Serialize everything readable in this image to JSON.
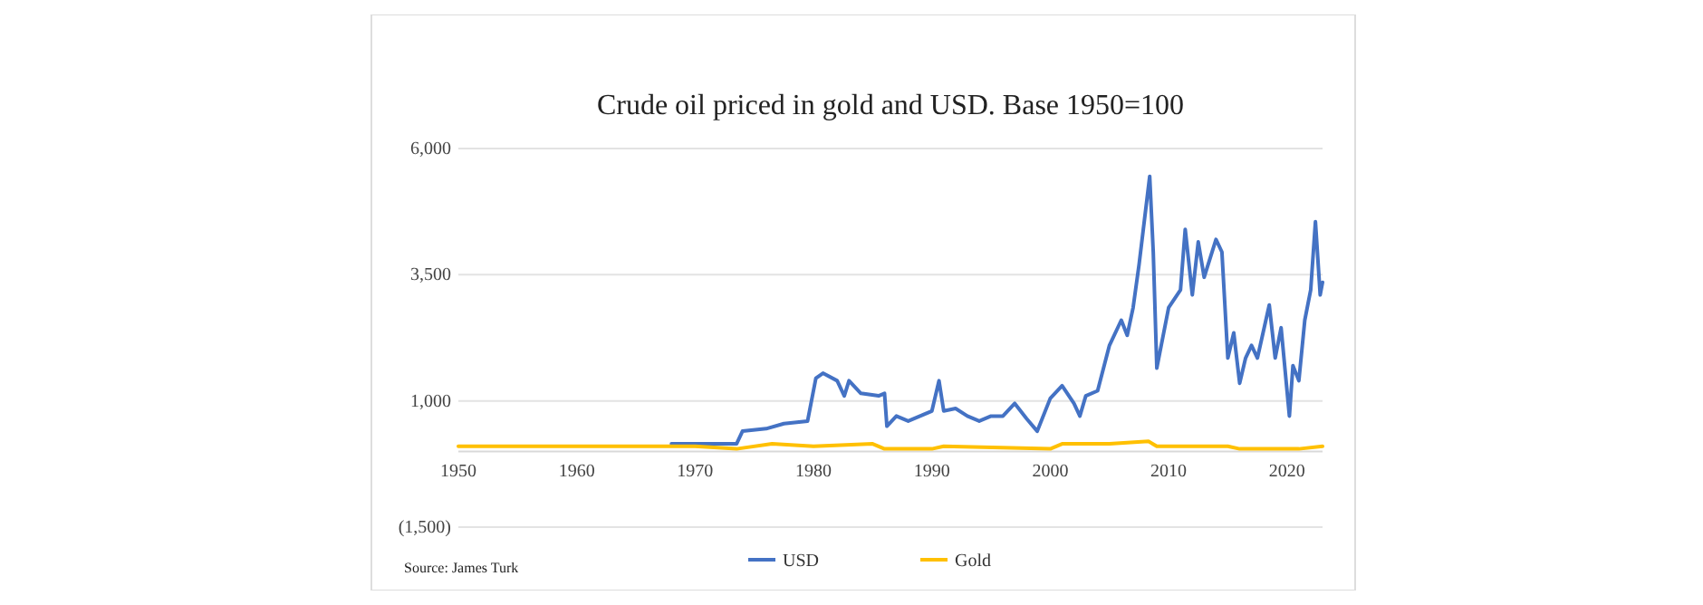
{
  "chart_data": {
    "type": "line",
    "title": "Crude oil priced in gold and USD. Base 1950=100",
    "annotations": [
      "Source: James Turk"
    ],
    "xlim": [
      1950,
      2023
    ],
    "xticks": [
      1950,
      1960,
      1970,
      1980,
      1990,
      2000,
      2010,
      2020
    ],
    "ylim": [
      -1500,
      6000
    ],
    "yticks": [
      {
        "value": -1500,
        "label": "(1,500)"
      },
      {
        "value": 1000,
        "label": "1,000"
      },
      {
        "value": 3500,
        "label": "3,500"
      },
      {
        "value": 6000,
        "label": "6,000"
      }
    ],
    "grid": "y",
    "legend": "bottom",
    "line_style": "solid",
    "marker": "none",
    "series": [
      {
        "name": "USD",
        "color": "#4472c4",
        "x": [
          1968,
          1973.5,
          1974,
          1976,
          1977.5,
          1979.5,
          1980.2,
          1980.8,
          1982,
          1982.6,
          1983,
          1984,
          1985.5,
          1986,
          1986.2,
          1987,
          1988,
          1989,
          1990,
          1990.6,
          1991,
          1992,
          1993,
          1994,
          1995,
          1996,
          1997,
          1998,
          1998.9,
          2000,
          2001,
          2002,
          2002.5,
          2003,
          2004,
          2005,
          2006,
          2006.5,
          2007,
          2007.5,
          2008.4,
          2008.7,
          2009,
          2010,
          2011,
          2011.4,
          2012,
          2012.5,
          2013,
          2014,
          2014.5,
          2015,
          2015.5,
          2016,
          2016.5,
          2017,
          2017.5,
          2018.5,
          2019,
          2019.5,
          2020.2,
          2020.5,
          2021,
          2021.5,
          2022,
          2022.4,
          2022.8,
          2023
        ],
        "values": [
          150,
          150,
          400,
          450,
          550,
          600,
          1450,
          1550,
          1400,
          1100,
          1400,
          1150,
          1100,
          1150,
          500,
          700,
          600,
          700,
          800,
          1400,
          800,
          850,
          700,
          600,
          700,
          700,
          950,
          650,
          400,
          1050,
          1300,
          950,
          700,
          1100,
          1200,
          2100,
          2600,
          2300,
          2850,
          3700,
          5450,
          3950,
          1650,
          2850,
          3200,
          4400,
          3100,
          4150,
          3450,
          4200,
          3950,
          1850,
          2350,
          1350,
          1850,
          2100,
          1850,
          2900,
          1850,
          2450,
          700,
          1700,
          1400,
          2600,
          3200,
          4550,
          3100,
          3350
        ]
      },
      {
        "name": "Gold",
        "color": "#ffc000",
        "x": [
          1950,
          1960,
          1970,
          1973.5,
          1976.5,
          1980,
          1985,
          1986,
          1990,
          1991,
          2000,
          2001,
          2005,
          2008.3,
          2009,
          2015,
          2016,
          2020,
          2021,
          2023
        ],
        "values": [
          100,
          100,
          100,
          50,
          150,
          100,
          150,
          50,
          50,
          100,
          50,
          150,
          150,
          200,
          100,
          100,
          50,
          50,
          50,
          100
        ]
      }
    ]
  }
}
